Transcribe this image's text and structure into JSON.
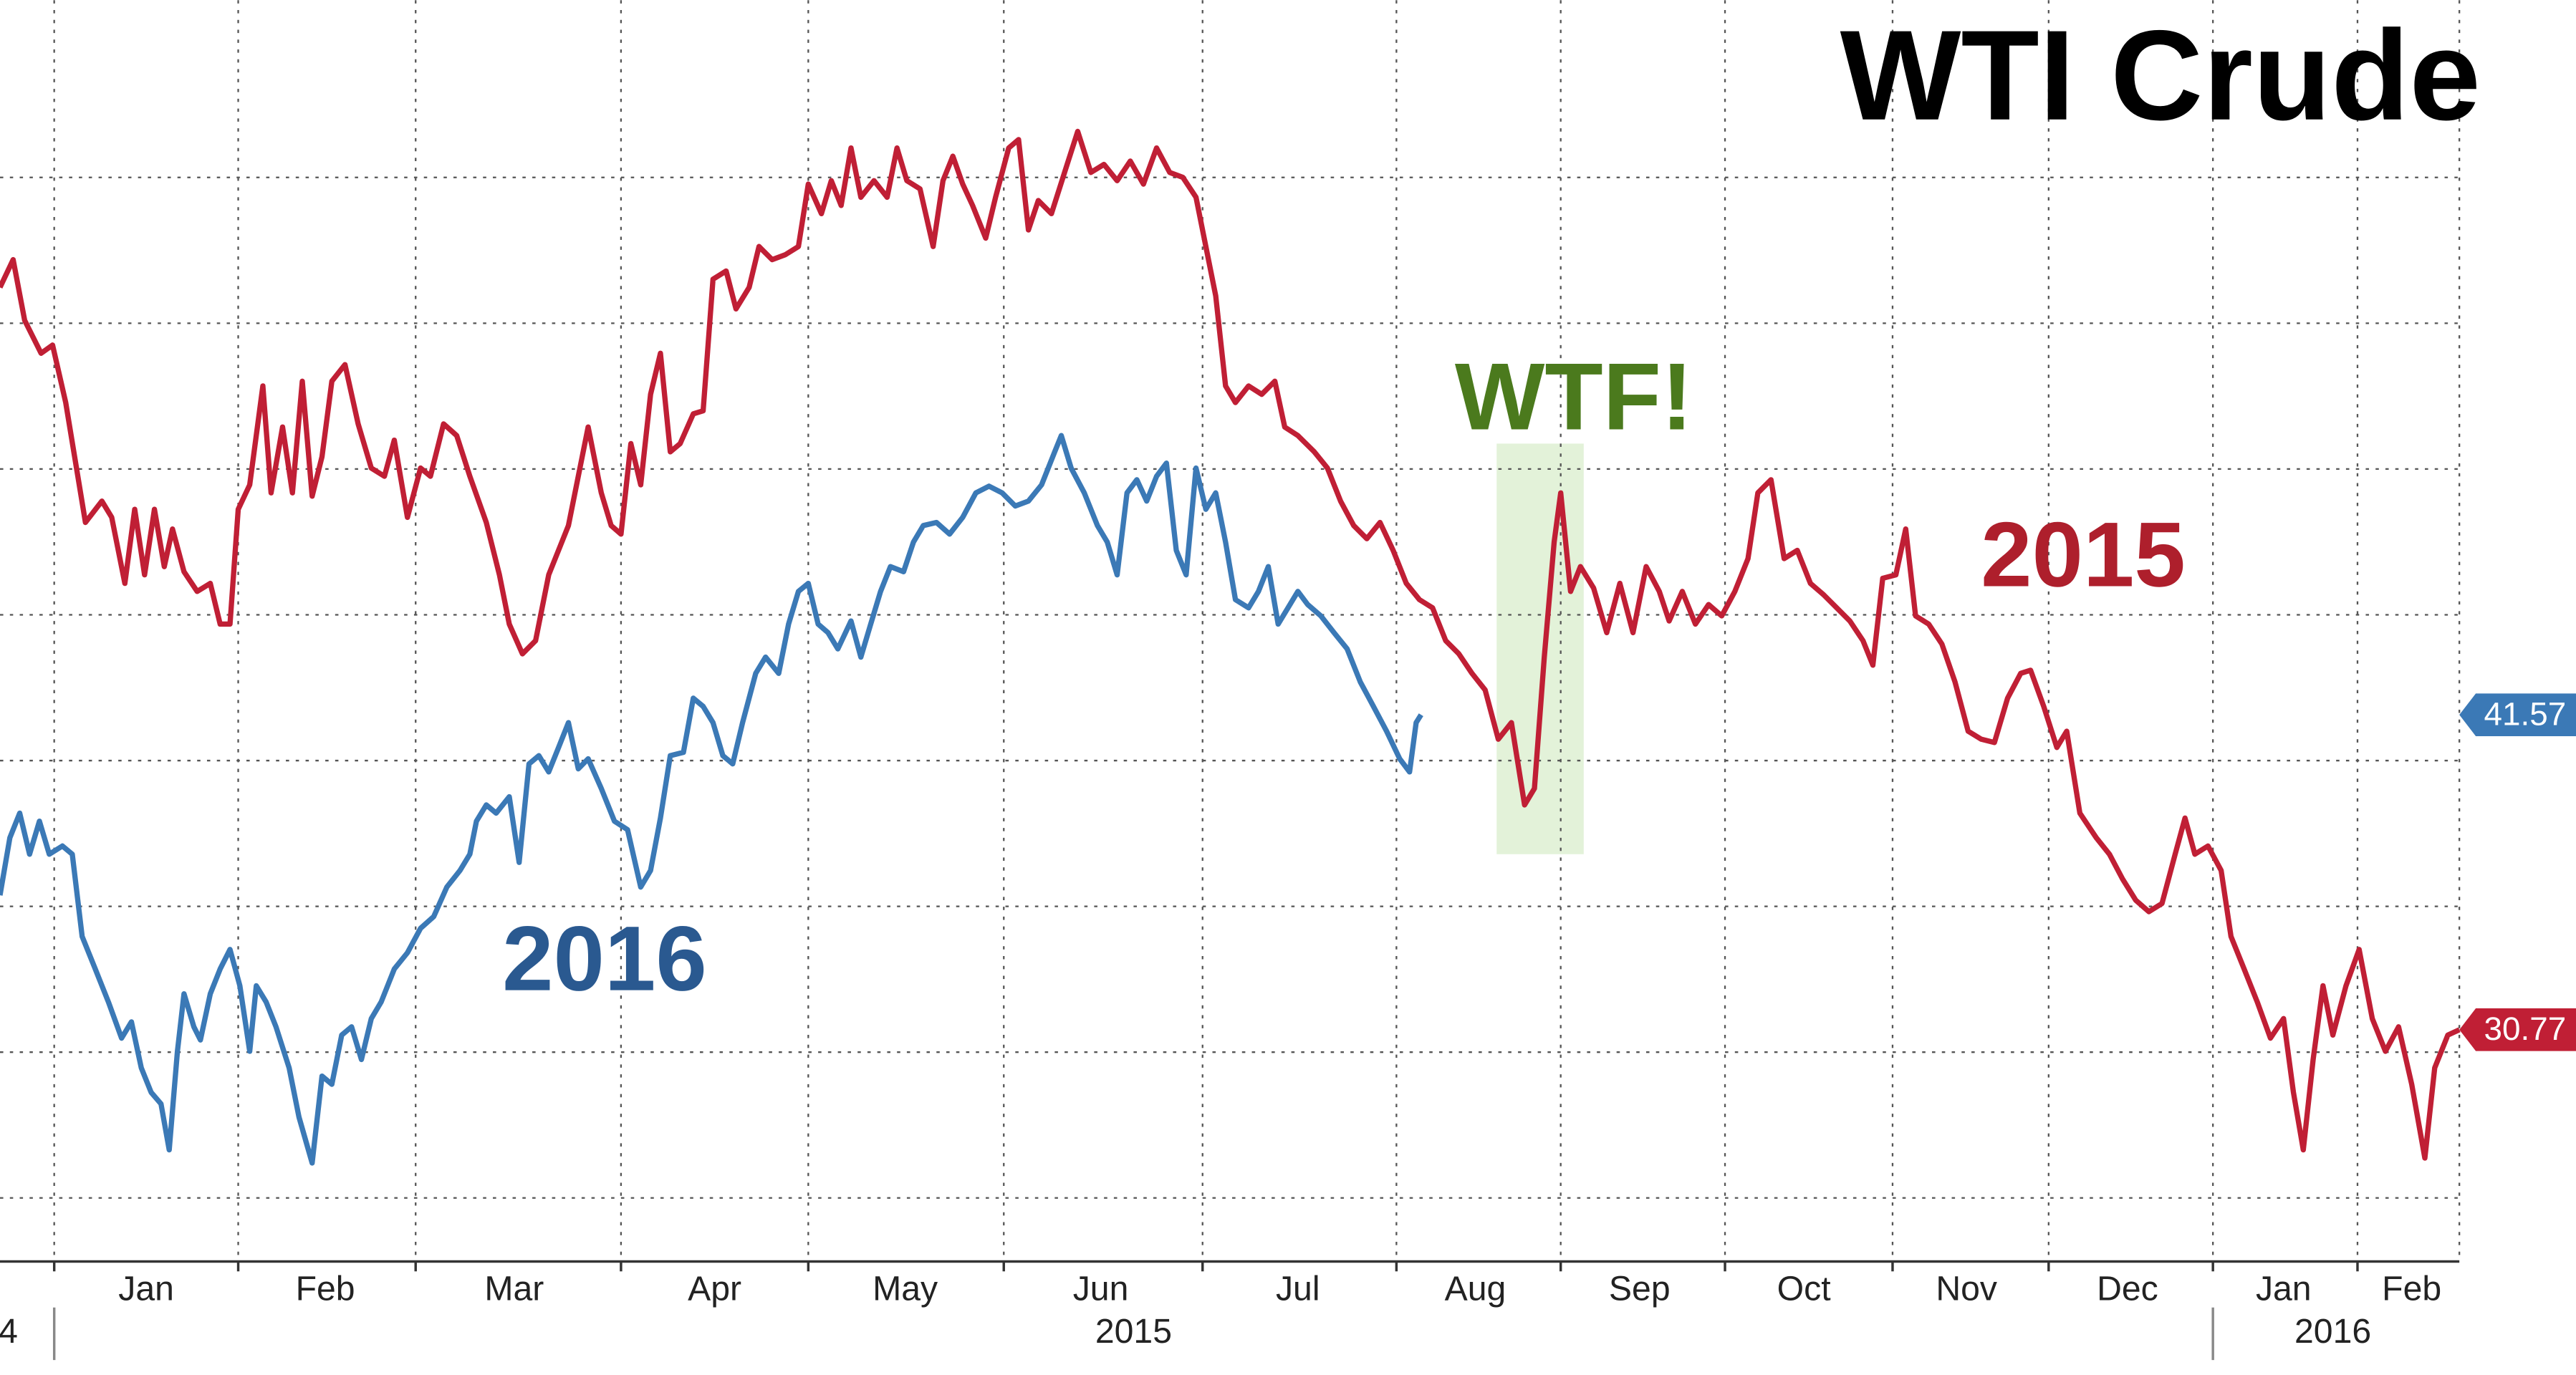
{
  "chart_data": {
    "type": "line",
    "title": "WTI Crude",
    "annotation": "WTF!",
    "xlim": [
      0,
      299.4
    ],
    "ylim": [
      22.82,
      66.08
    ],
    "yticks": [
      25,
      30,
      35,
      40,
      45,
      50,
      55,
      60
    ],
    "xgrid": [
      6.6,
      29,
      50.6,
      75.6,
      98.4,
      122.2,
      146.4,
      170,
      190,
      210,
      230.4,
      249.4,
      269.4,
      287
    ],
    "xticks": [
      {
        "value": 17.8,
        "label": "Jan"
      },
      {
        "value": 39.6,
        "label": "Feb"
      },
      {
        "value": 62.6,
        "label": "Mar"
      },
      {
        "value": 87,
        "label": "Apr"
      },
      {
        "value": 110.2,
        "label": "May"
      },
      {
        "value": 134,
        "label": "Jun"
      },
      {
        "value": 158,
        "label": "Jul"
      },
      {
        "value": 179.6,
        "label": "Aug"
      },
      {
        "value": 199.6,
        "label": "Sep"
      },
      {
        "value": 219.6,
        "label": "Oct"
      },
      {
        "value": 239.4,
        "label": "Nov"
      },
      {
        "value": 259,
        "label": "Dec"
      },
      {
        "value": 278,
        "label": "Jan"
      },
      {
        "value": 293.6,
        "label": "Feb"
      }
    ],
    "year_labels": [
      {
        "value": 1,
        "label": "4"
      },
      {
        "value": 138,
        "label": "2015"
      },
      {
        "value": 284,
        "label": "2016"
      }
    ],
    "year_breaks": [
      6.6,
      269.4
    ],
    "grid": true,
    "series": [
      {
        "name": "2015",
        "color": "#c01f35",
        "x": [
          0,
          1.6,
          3,
          5,
          6.4,
          8,
          10.4,
          12.4,
          13.6,
          15.2,
          16.4,
          17.6,
          18.8,
          20,
          21,
          22.4,
          24,
          25.6,
          26.8,
          28,
          29,
          30.4,
          32,
          33,
          34.4,
          35.6,
          36.8,
          38,
          39.2,
          40.4,
          42,
          43.6,
          45.2,
          46.8,
          48,
          49.6,
          51.2,
          52.4,
          54,
          55.6,
          57.2,
          59.2,
          60.8,
          62,
          63.6,
          65.2,
          66.8,
          69.2,
          70.4,
          71.6,
          73.2,
          74.4,
          75.6,
          76.8,
          78,
          79.2,
          80.4,
          81.6,
          82.8,
          84.4,
          85.6,
          86.8,
          88.4,
          89.6,
          91.2,
          92.4,
          94,
          95.6,
          97.2,
          98.4,
          100,
          101.2,
          102.4,
          103.6,
          104.8,
          106.4,
          108,
          109.2,
          110.4,
          112,
          113.6,
          114.8,
          116,
          117.2,
          118.4,
          120,
          121.2,
          122.8,
          124,
          125.2,
          126.4,
          128,
          129.6,
          131.2,
          132.8,
          134.4,
          136,
          137.6,
          139.2,
          140.8,
          142.4,
          144,
          145.6,
          146.8,
          148,
          149.2,
          150.4,
          152,
          153.6,
          155.2,
          156.4,
          158,
          160,
          161.6,
          163.2,
          164.8,
          166.4,
          168,
          169.6,
          171.2,
          172.8,
          174.4,
          176,
          177.6,
          179.2,
          180.8,
          182.4,
          184,
          185.6,
          186.8,
          188,
          189.2,
          190,
          191.2,
          192.4,
          194,
          195.6,
          197.2,
          198.8,
          200.4,
          202,
          203.2,
          204.8,
          206.4,
          208,
          209.6,
          211.2,
          212.8,
          214,
          215.6,
          217.2,
          218.8,
          220.4,
          222,
          223.6,
          225.2,
          226.8,
          228,
          229.2,
          230.8,
          232,
          233.2,
          234.8,
          236.4,
          238,
          239.6,
          241.2,
          242.8,
          244.4,
          246,
          247.2,
          248.8,
          250.4,
          251.6,
          253.2,
          255.2,
          256.8,
          258.4,
          260,
          261.6,
          263.2,
          264.8,
          266,
          267.2,
          268.8,
          270.4,
          271.6,
          273.2,
          274.8,
          276.4,
          278,
          279.2,
          280.4,
          281.6,
          282.8,
          284,
          285.6,
          287.2,
          288.8,
          290.4,
          292,
          293.6,
          295.2,
          296.4,
          298,
          299.4
        ],
        "values": [
          56.23,
          57.18,
          55.1,
          53.97,
          54.25,
          52.28,
          48.17,
          48.9,
          48.34,
          46.08,
          48.62,
          46.37,
          48.62,
          46.65,
          47.94,
          46.48,
          45.8,
          46.08,
          44.68,
          44.68,
          48.62,
          49.46,
          52.85,
          49.18,
          51.44,
          49.18,
          53.01,
          49.07,
          50.42,
          53.01,
          53.58,
          51.55,
          50.03,
          49.75,
          50.99,
          48.34,
          50.03,
          49.75,
          51.55,
          51.15,
          49.75,
          48.17,
          46.37,
          44.68,
          43.66,
          44.11,
          46.37,
          48.06,
          49.75,
          51.44,
          49.18,
          48.06,
          47.77,
          50.87,
          49.46,
          52.56,
          53.97,
          50.59,
          50.87,
          51.89,
          52.0,
          56.51,
          56.79,
          55.49,
          56.23,
          57.63,
          57.18,
          57.35,
          57.63,
          59.77,
          58.76,
          59.89,
          59.04,
          61.01,
          59.32,
          59.89,
          59.32,
          61.01,
          59.89,
          59.61,
          57.63,
          59.89,
          60.73,
          59.77,
          59.04,
          57.92,
          59.32,
          61.01,
          61.3,
          58.2,
          59.21,
          58.76,
          60.17,
          61.58,
          60.17,
          60.45,
          59.89,
          60.56,
          59.77,
          61.01,
          60.17,
          60.0,
          59.32,
          57.63,
          55.94,
          52.85,
          52.28,
          52.85,
          52.56,
          53.01,
          51.44,
          51.15,
          50.59,
          50.03,
          48.9,
          48.06,
          47.61,
          48.17,
          47.21,
          46.08,
          45.52,
          45.24,
          44.11,
          43.66,
          42.99,
          42.42,
          40.73,
          41.3,
          38.48,
          39.04,
          43.55,
          47.49,
          49.18,
          45.8,
          46.65,
          45.92,
          44.39,
          46.08,
          44.39,
          46.65,
          45.8,
          44.79,
          45.8,
          44.68,
          45.35,
          44.96,
          45.8,
          46.93,
          49.18,
          49.63,
          46.93,
          47.21,
          46.08,
          45.69,
          45.24,
          44.79,
          44.11,
          43.27,
          46.25,
          46.37,
          47.94,
          44.96,
          44.68,
          44.0,
          42.7,
          41.01,
          40.73,
          40.62,
          42.14,
          42.99,
          43.1,
          41.86,
          40.45,
          41.01,
          38.2,
          37.35,
          36.79,
          35.94,
          35.21,
          34.82,
          35.1,
          36.79,
          38.03,
          36.79,
          37.07,
          36.23,
          33.97,
          32.85,
          31.72,
          30.48,
          31.15,
          28.62,
          26.65,
          29.75,
          32.28,
          30.59,
          32.28,
          33.52,
          31.15,
          30.03,
          30.87,
          28.9,
          26.37,
          29.46,
          30.59,
          30.77
        ]
      },
      {
        "name": "2016",
        "color": "#3b79b6",
        "x": [
          0,
          1.2,
          2.4,
          3.6,
          4.8,
          6,
          7.6,
          8.8,
          10,
          11.6,
          13.2,
          14.8,
          16,
          17.2,
          18.4,
          19.6,
          20.6,
          21.6,
          22.4,
          23.6,
          24.4,
          25.6,
          26.8,
          28,
          29.2,
          30.4,
          31.2,
          32.4,
          33.6,
          35.2,
          36.4,
          38,
          39.2,
          40.4,
          41.6,
          42.8,
          44,
          45.2,
          46.4,
          48,
          49.6,
          51.2,
          52.8,
          54.4,
          56,
          57.2,
          58,
          59.2,
          60.4,
          62,
          63.2,
          64.4,
          65.6,
          66.8,
          68,
          69.2,
          70.4,
          71.6,
          73.2,
          74.8,
          76.4,
          78,
          79.2,
          80.4,
          81.6,
          83.2,
          84.4,
          85.6,
          86.8,
          88,
          89.2,
          90.4,
          92,
          93.2,
          94.8,
          96,
          97.2,
          98.4,
          99.6,
          100.8,
          102,
          103.6,
          104.8,
          106,
          107.2,
          108.4,
          110,
          111.2,
          112.4,
          114,
          115.6,
          117.2,
          118.8,
          120.4,
          122,
          123.6,
          125.2,
          126.8,
          128.4,
          129.2,
          130.4,
          132,
          133.6,
          134.8,
          136,
          137.2,
          138.4,
          139.6,
          140.8,
          142,
          143.2,
          144.4,
          145.6,
          146.8,
          148,
          149.2,
          150.4,
          152,
          153.2,
          154.4,
          155.6,
          156.8,
          158,
          159.2,
          160.8,
          162.4,
          164,
          165.6,
          167.2,
          168.8,
          170.4,
          171.6,
          172.4,
          173
        ],
        "values": [
          35.38,
          37.35,
          38.2,
          36.79,
          37.92,
          36.79,
          37.07,
          36.79,
          33.97,
          32.85,
          31.72,
          30.48,
          31.04,
          29.46,
          28.62,
          28.23,
          26.65,
          30.03,
          32.0,
          30.87,
          30.42,
          32.0,
          32.85,
          33.52,
          32.28,
          30.03,
          32.28,
          31.72,
          30.87,
          29.46,
          27.77,
          26.2,
          29.18,
          28.9,
          30.59,
          30.87,
          29.75,
          31.15,
          31.72,
          32.85,
          33.41,
          34.25,
          34.65,
          35.66,
          36.23,
          36.79,
          37.92,
          38.48,
          38.2,
          38.76,
          36.51,
          39.89,
          40.17,
          39.61,
          40.45,
          41.3,
          39.72,
          40.06,
          39.04,
          37.92,
          37.63,
          35.66,
          36.23,
          38.03,
          40.17,
          40.28,
          42.14,
          41.86,
          41.3,
          40.17,
          39.89,
          41.3,
          42.99,
          43.55,
          42.99,
          44.68,
          45.8,
          46.08,
          44.68,
          44.39,
          43.83,
          44.79,
          43.55,
          44.68,
          45.8,
          46.65,
          46.48,
          47.49,
          48.06,
          48.17,
          47.77,
          48.34,
          49.18,
          49.41,
          49.18,
          48.73,
          48.9,
          49.46,
          50.59,
          51.15,
          50.03,
          49.18,
          48.06,
          47.49,
          46.37,
          49.18,
          49.63,
          48.9,
          49.75,
          50.2,
          47.21,
          46.37,
          50.03,
          48.62,
          49.18,
          47.49,
          45.52,
          45.24,
          45.8,
          46.65,
          44.68,
          45.24,
          45.8,
          45.35,
          44.96,
          44.39,
          43.83,
          42.7,
          41.86,
          41.01,
          40.06,
          39.61,
          41.3,
          41.57
        ]
      }
    ]
  }
}
